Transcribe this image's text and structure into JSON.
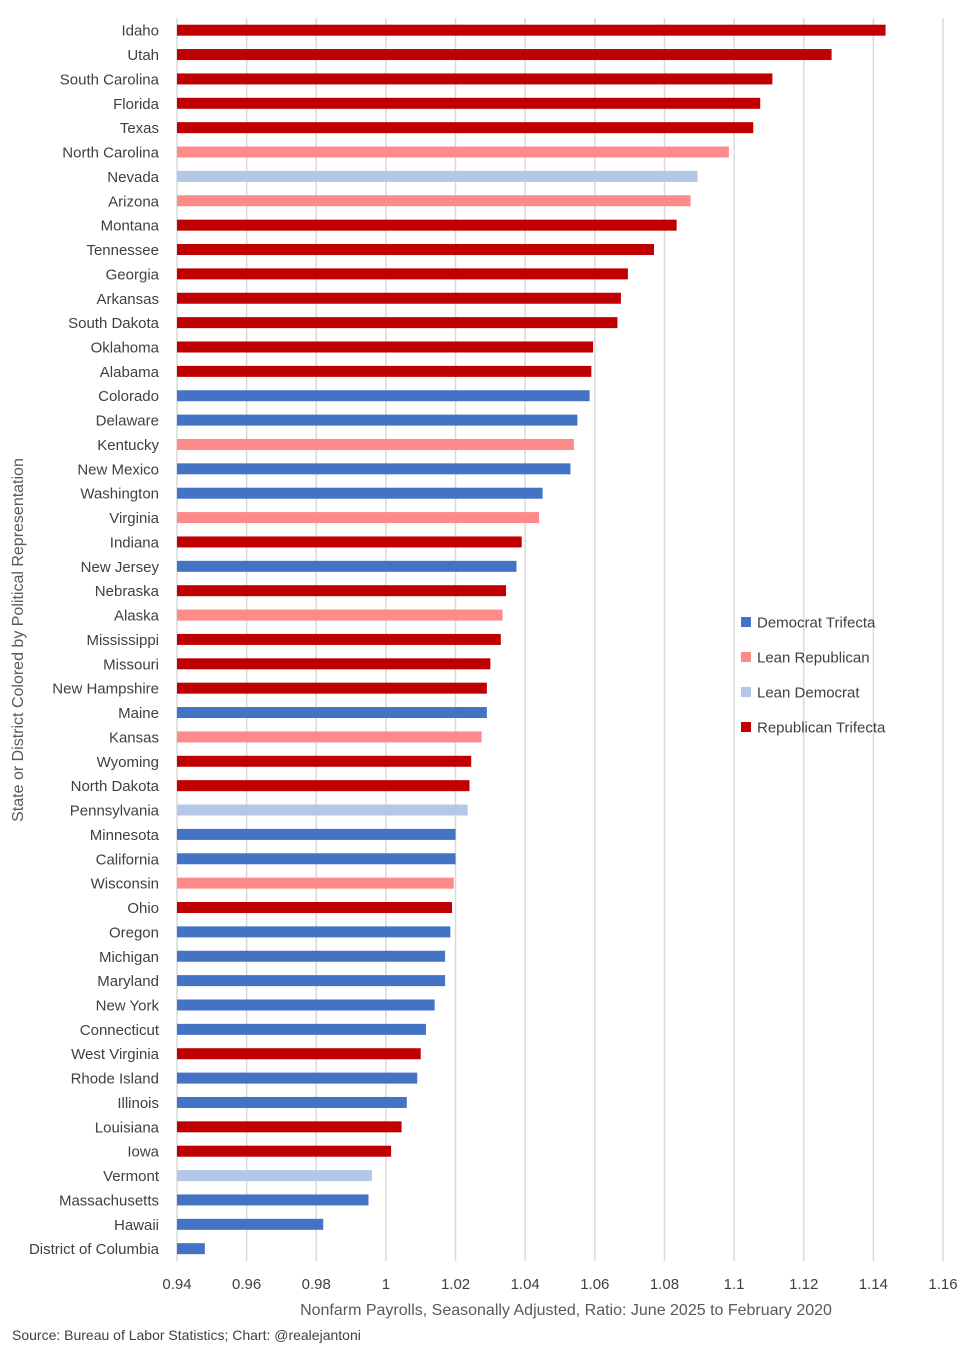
{
  "chart_data": {
    "type": "bar",
    "orientation": "horizontal",
    "title": "",
    "xlabel": "Nonfarm Payrolls, Seasonally Adjusted, Ratio: June 2025 to February 2020",
    "ylabel": "State or District Colored by Political Representation",
    "xlim": [
      0.94,
      1.16
    ],
    "xticks": [
      "0.94",
      "0.96",
      "0.98",
      "1",
      "1.02",
      "1.04",
      "1.06",
      "1.08",
      "1.1",
      "1.12",
      "1.14",
      "1.16"
    ],
    "grid": "vertical",
    "legend_position": "right",
    "groups": [
      {
        "name": "Democrat Trifecta",
        "color": "#4472C4"
      },
      {
        "name": "Lean Republican",
        "color": "#FF8A8A"
      },
      {
        "name": "Lean Democrat",
        "color": "#B4C7E7"
      },
      {
        "name": "Republican Trifecta",
        "color": "#C00000"
      }
    ],
    "bars": [
      {
        "label": "Idaho",
        "value": 1.1435,
        "group": "Republican Trifecta"
      },
      {
        "label": "Utah",
        "value": 1.128,
        "group": "Republican Trifecta"
      },
      {
        "label": "South Carolina",
        "value": 1.111,
        "group": "Republican Trifecta"
      },
      {
        "label": "Florida",
        "value": 1.1075,
        "group": "Republican Trifecta"
      },
      {
        "label": "Texas",
        "value": 1.1055,
        "group": "Republican Trifecta"
      },
      {
        "label": "North Carolina",
        "value": 1.0985,
        "group": "Lean Republican"
      },
      {
        "label": "Nevada",
        "value": 1.0895,
        "group": "Lean Democrat"
      },
      {
        "label": "Arizona",
        "value": 1.0875,
        "group": "Lean Republican"
      },
      {
        "label": "Montana",
        "value": 1.0835,
        "group": "Republican Trifecta"
      },
      {
        "label": "Tennessee",
        "value": 1.077,
        "group": "Republican Trifecta"
      },
      {
        "label": "Georgia",
        "value": 1.0695,
        "group": "Republican Trifecta"
      },
      {
        "label": "Arkansas",
        "value": 1.0675,
        "group": "Republican Trifecta"
      },
      {
        "label": "South Dakota",
        "value": 1.0665,
        "group": "Republican Trifecta"
      },
      {
        "label": "Oklahoma",
        "value": 1.0595,
        "group": "Republican Trifecta"
      },
      {
        "label": "Alabama",
        "value": 1.059,
        "group": "Republican Trifecta"
      },
      {
        "label": "Colorado",
        "value": 1.0585,
        "group": "Democrat Trifecta"
      },
      {
        "label": "Delaware",
        "value": 1.055,
        "group": "Democrat Trifecta"
      },
      {
        "label": "Kentucky",
        "value": 1.054,
        "group": "Lean Republican"
      },
      {
        "label": "New Mexico",
        "value": 1.053,
        "group": "Democrat Trifecta"
      },
      {
        "label": "Washington",
        "value": 1.045,
        "group": "Democrat Trifecta"
      },
      {
        "label": "Virginia",
        "value": 1.044,
        "group": "Lean Republican"
      },
      {
        "label": "Indiana",
        "value": 1.039,
        "group": "Republican Trifecta"
      },
      {
        "label": "New Jersey",
        "value": 1.0375,
        "group": "Democrat Trifecta"
      },
      {
        "label": "Nebraska",
        "value": 1.0345,
        "group": "Republican Trifecta"
      },
      {
        "label": "Alaska",
        "value": 1.0335,
        "group": "Lean Republican"
      },
      {
        "label": "Mississippi",
        "value": 1.033,
        "group": "Republican Trifecta"
      },
      {
        "label": "Missouri",
        "value": 1.03,
        "group": "Republican Trifecta"
      },
      {
        "label": "New Hampshire",
        "value": 1.029,
        "group": "Republican Trifecta"
      },
      {
        "label": "Maine",
        "value": 1.029,
        "group": "Democrat Trifecta"
      },
      {
        "label": "Kansas",
        "value": 1.0275,
        "group": "Lean Republican"
      },
      {
        "label": "Wyoming",
        "value": 1.0245,
        "group": "Republican Trifecta"
      },
      {
        "label": "North Dakota",
        "value": 1.024,
        "group": "Republican Trifecta"
      },
      {
        "label": "Pennsylvania",
        "value": 1.0235,
        "group": "Lean Democrat"
      },
      {
        "label": "Minnesota",
        "value": 1.02,
        "group": "Democrat Trifecta"
      },
      {
        "label": "California",
        "value": 1.02,
        "group": "Democrat Trifecta"
      },
      {
        "label": "Wisconsin",
        "value": 1.0195,
        "group": "Lean Republican"
      },
      {
        "label": "Ohio",
        "value": 1.019,
        "group": "Republican Trifecta"
      },
      {
        "label": "Oregon",
        "value": 1.0185,
        "group": "Democrat Trifecta"
      },
      {
        "label": "Michigan",
        "value": 1.017,
        "group": "Democrat Trifecta"
      },
      {
        "label": "Maryland",
        "value": 1.017,
        "group": "Democrat Trifecta"
      },
      {
        "label": "New York",
        "value": 1.014,
        "group": "Democrat Trifecta"
      },
      {
        "label": "Connecticut",
        "value": 1.0115,
        "group": "Democrat Trifecta"
      },
      {
        "label": "West Virginia",
        "value": 1.01,
        "group": "Republican Trifecta"
      },
      {
        "label": "Rhode Island",
        "value": 1.009,
        "group": "Democrat Trifecta"
      },
      {
        "label": "Illinois",
        "value": 1.006,
        "group": "Democrat Trifecta"
      },
      {
        "label": "Louisiana",
        "value": 1.0045,
        "group": "Republican Trifecta"
      },
      {
        "label": "Iowa",
        "value": 1.0015,
        "group": "Republican Trifecta"
      },
      {
        "label": "Vermont",
        "value": 0.996,
        "group": "Lean Democrat"
      },
      {
        "label": "Massachusetts",
        "value": 0.995,
        "group": "Democrat Trifecta"
      },
      {
        "label": "Hawaii",
        "value": 0.982,
        "group": "Democrat Trifecta"
      },
      {
        "label": "District of Columbia",
        "value": 0.948,
        "group": "Democrat Trifecta"
      }
    ]
  },
  "source_note": "Source: Bureau of Labor Statistics; Chart: @realejantoni"
}
